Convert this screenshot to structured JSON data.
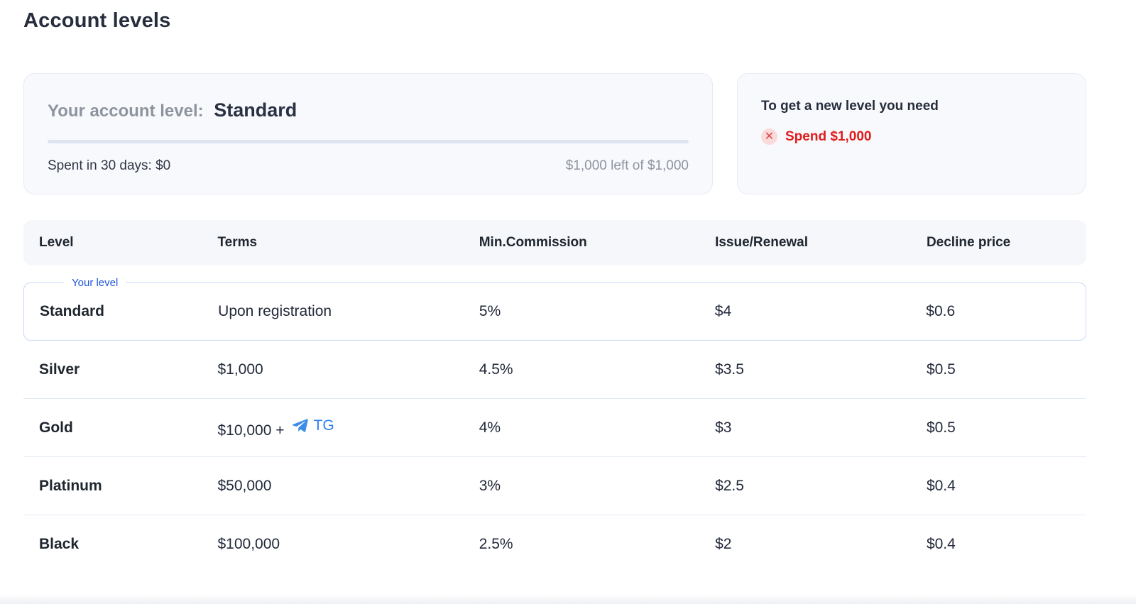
{
  "page": {
    "title": "Account levels"
  },
  "account_card": {
    "label": "Your account level:",
    "level": "Standard",
    "spent_label": "Spent in 30 days: $0",
    "remaining_label": "$1,000 left of $1,000",
    "progress_percent": 0
  },
  "next_level_card": {
    "title": "To get a new level you need",
    "requirement": "Spend $1,000",
    "icon": "x-circle-icon",
    "x_glyph": "✕"
  },
  "table": {
    "columns": [
      "Level",
      "Terms",
      "Min.Commission",
      "Issue/Renewal",
      "Decline price"
    ],
    "your_level_badge": "Your level",
    "rows": [
      {
        "level": "Standard",
        "terms": "Upon registration",
        "commission": "5%",
        "issue_renewal": "$4",
        "decline_price": "$0.6",
        "is_current": true
      },
      {
        "level": "Silver",
        "terms": "$1,000",
        "commission": "4.5%",
        "issue_renewal": "$3.5",
        "decline_price": "$0.5"
      },
      {
        "level": "Gold",
        "terms": "$10,000 +",
        "terms_tg": "TG",
        "commission": "4%",
        "issue_renewal": "$3",
        "decline_price": "$0.5"
      },
      {
        "level": "Platinum",
        "terms": "$50,000",
        "commission": "3%",
        "issue_renewal": "$2.5",
        "decline_price": "$0.4"
      },
      {
        "level": "Black",
        "terms": "$100,000",
        "commission": "2.5%",
        "issue_renewal": "$2",
        "decline_price": "$0.4"
      }
    ]
  },
  "colors": {
    "accent_blue": "#2156d9",
    "tg_blue": "#2f80f5",
    "alert_red": "#e01c1c",
    "alert_pink_bg": "#fbdada",
    "card_bg": "#f8f9fc",
    "header_bg": "#f5f7fa",
    "progress_track": "#dde4f0"
  }
}
